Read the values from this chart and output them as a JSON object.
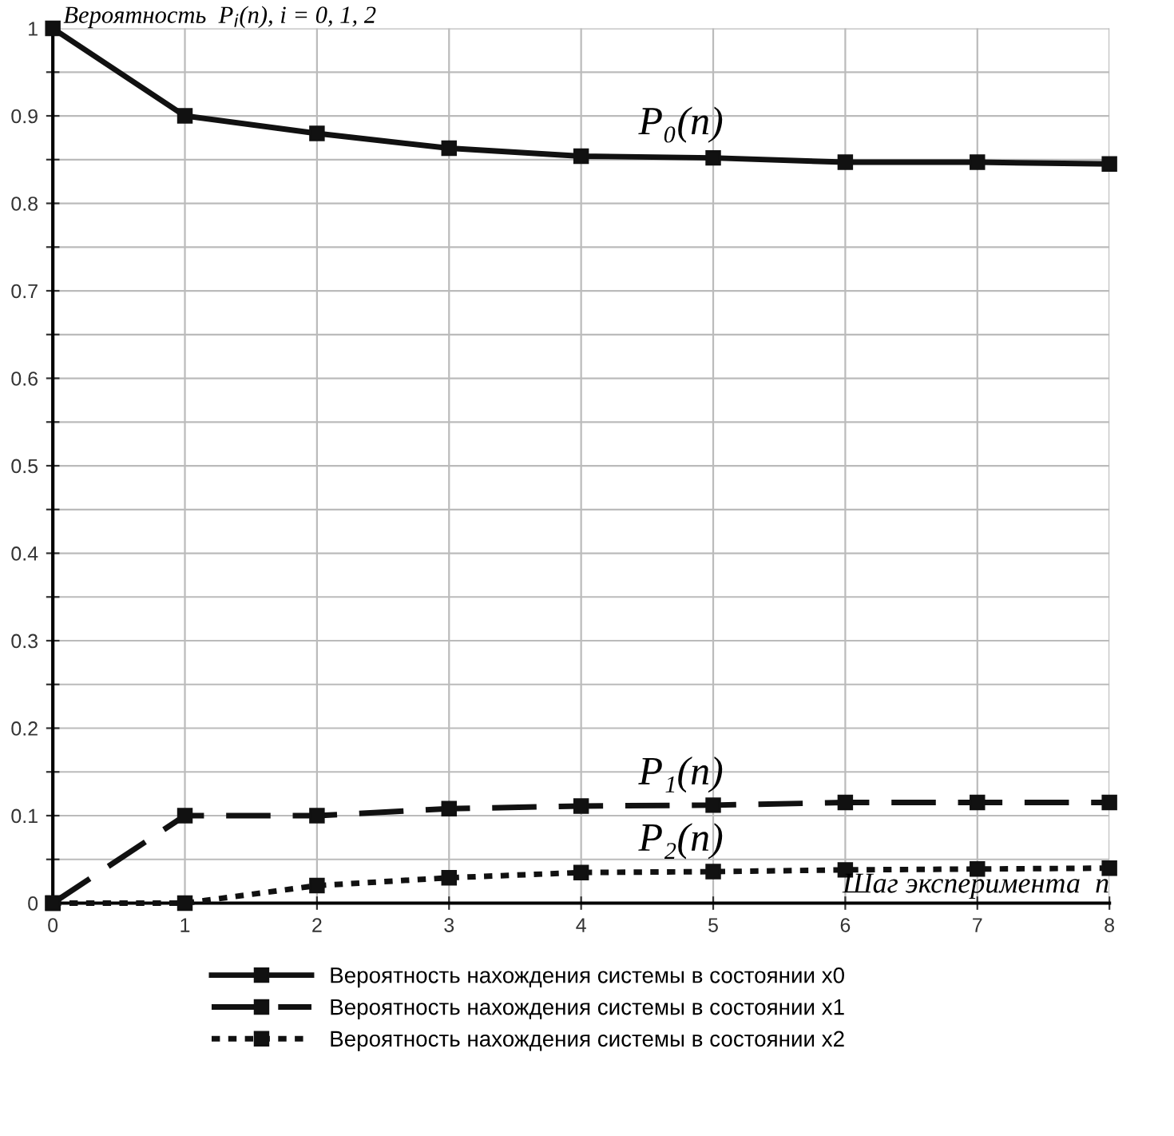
{
  "chart_data": {
    "type": "line",
    "ylabel": "Вероятность  P$_{i}$(n), i = 0, 1, 2",
    "xlabel": "Шаг эксперимента  n",
    "x": [
      0,
      1,
      2,
      3,
      4,
      5,
      6,
      7,
      8
    ],
    "series": [
      {
        "name": "Вероятность нахождения системы в состоянии x0",
        "color": "#111111",
        "line_style": "solid",
        "values": [
          1,
          0.9,
          0.88,
          0.863,
          0.854,
          0.852,
          0.847,
          0.847,
          0.845
        ]
      },
      {
        "name": "Вероятность нахождения системы в состоянии x1",
        "color": "#111111",
        "line_style": "dashed",
        "values": [
          0,
          0.1,
          0.1,
          0.108,
          0.111,
          0.112,
          0.115,
          0.115,
          0.115
        ]
      },
      {
        "name": "Вероятность нахождения системы в состоянии x2",
        "color": "#111111",
        "line_style": "dotted",
        "values": [
          0,
          0,
          0.02,
          0.029,
          0.035,
          0.036,
          0.038,
          0.039,
          0.04
        ]
      }
    ],
    "annotations": [
      "P₀(n)",
      "P₁(n)",
      "P₂(n)"
    ],
    "xlim": [
      0,
      8
    ],
    "ylim": [
      0,
      1
    ],
    "xticks": [
      0,
      1,
      2,
      3,
      4,
      5,
      6,
      7,
      8
    ],
    "yticks": [
      0,
      {
        "value": 0.05,
        "label": null
      },
      0.1,
      {
        "value": 0.15,
        "label": null
      },
      0.2,
      {
        "value": 0.25,
        "label": null
      },
      0.3,
      {
        "value": 0.35,
        "label": null
      },
      0.4,
      {
        "value": 0.45,
        "label": null
      },
      0.5,
      {
        "value": 0.55,
        "label": null
      },
      0.6,
      {
        "value": 0.65,
        "label": null
      },
      0.7,
      {
        "value": 0.75,
        "label": null
      },
      0.8,
      {
        "value": 0.85,
        "label": null
      },
      0.9,
      {
        "value": 0.95,
        "label": null
      },
      1
    ],
    "grid": true,
    "legend": "bottom",
    "marker": "square"
  }
}
